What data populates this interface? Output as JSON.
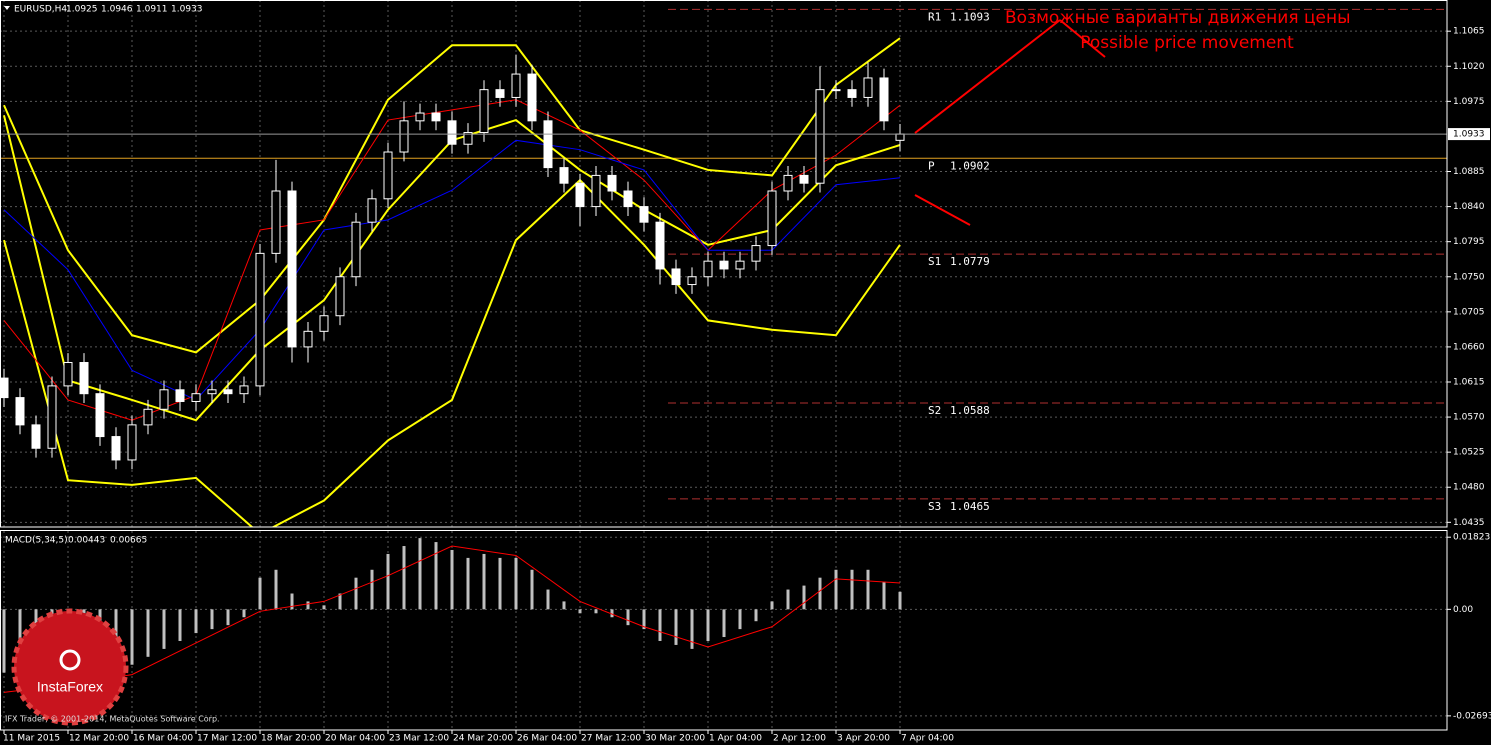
{
  "header": {
    "symbol": "EURUSD,H4"
  },
  "chart_data": [
    {
      "type": "candlestick",
      "categories": [
        "11 Mar 2015",
        null,
        null,
        null,
        "12 Mar 20:00",
        null,
        null,
        null,
        "16 Mar 04:00",
        null,
        null,
        null,
        "17 Mar 12:00",
        null,
        null,
        null,
        "18 Mar 20:00",
        null,
        null,
        null,
        "20 Mar 04:00",
        null,
        null,
        null,
        "23 Mar 12:00",
        null,
        null,
        null,
        "24 Mar 20:00",
        null,
        null,
        null,
        "26 Mar 04:00",
        null,
        null,
        null,
        "27 Mar 12:00",
        null,
        null,
        null,
        "30 Mar 20:00",
        null,
        null,
        null,
        "1 Apr 04:00",
        null,
        null,
        null,
        "2 Apr 12:00",
        null,
        null,
        null,
        "3 Apr 20:00",
        null,
        null,
        null,
        "7 Apr 04:00"
      ],
      "open": [
        1.062,
        1.0595,
        1.056,
        1.053,
        1.061,
        1.064,
        1.06,
        1.0545,
        1.0515,
        1.056,
        1.058,
        1.0605,
        1.059,
        1.06,
        1.0605,
        1.06,
        1.061,
        1.078,
        1.086,
        1.066,
        1.068,
        1.07,
        1.075,
        1.082,
        1.085,
        1.091,
        1.095,
        1.096,
        1.095,
        1.092,
        1.0935,
        1.099,
        1.098,
        1.101,
        1.095,
        1.089,
        1.087,
        1.084,
        1.088,
        1.086,
        1.084,
        1.082,
        1.076,
        1.074,
        1.075,
        1.077,
        1.076,
        1.077,
        1.079,
        1.086,
        1.088,
        1.087,
        1.099,
        1.099,
        1.098,
        1.1005,
        1.0925
      ],
      "high": [
        1.0632,
        1.0607,
        1.0572,
        1.0622,
        1.0652,
        1.0652,
        1.0612,
        1.0557,
        1.0572,
        1.0592,
        1.0617,
        1.0617,
        1.0612,
        1.0617,
        1.0617,
        1.0622,
        1.0792,
        1.09,
        1.0872,
        1.0692,
        1.0712,
        1.0762,
        1.0832,
        1.0862,
        1.0922,
        1.0975,
        1.0972,
        1.0972,
        1.0962,
        1.0947,
        1.1002,
        1.1002,
        1.1035,
        1.1022,
        1.0962,
        1.0902,
        1.0882,
        1.0892,
        1.0892,
        1.0872,
        1.0852,
        1.0832,
        1.0772,
        1.0762,
        1.0782,
        1.0782,
        1.0782,
        1.0802,
        1.0872,
        1.0892,
        1.0892,
        1.102,
        1.1002,
        1.1002,
        1.1025,
        1.1017,
        1.0946
      ],
      "low": [
        1.0583,
        1.0548,
        1.0518,
        1.0518,
        1.0598,
        1.0588,
        1.0533,
        1.0503,
        1.0503,
        1.0548,
        1.0568,
        1.0578,
        1.0578,
        1.0588,
        1.0588,
        1.0588,
        1.0598,
        1.0768,
        1.064,
        1.064,
        1.0668,
        1.0688,
        1.0738,
        1.0808,
        1.0838,
        1.0898,
        1.0938,
        1.0938,
        1.0908,
        1.0908,
        1.0923,
        1.0968,
        1.0968,
        1.0938,
        1.0878,
        1.0858,
        1.0815,
        1.0828,
        1.0848,
        1.0828,
        1.0808,
        1.074,
        1.0728,
        1.0728,
        1.0738,
        1.0748,
        1.0748,
        1.0758,
        1.0778,
        1.0848,
        1.0858,
        1.0858,
        1.0978,
        1.0968,
        1.0968,
        1.0938,
        1.0911
      ],
      "close": [
        1.0595,
        1.056,
        1.053,
        1.061,
        1.064,
        1.06,
        1.0545,
        1.0515,
        1.056,
        1.058,
        1.0605,
        1.059,
        1.06,
        1.0605,
        1.06,
        1.061,
        1.078,
        1.086,
        1.066,
        1.068,
        1.07,
        1.075,
        1.082,
        1.085,
        1.091,
        1.095,
        1.096,
        1.095,
        1.092,
        1.0935,
        1.099,
        1.098,
        1.101,
        1.095,
        1.089,
        1.087,
        1.084,
        1.088,
        1.086,
        1.084,
        1.082,
        1.076,
        1.074,
        1.075,
        1.077,
        1.076,
        1.077,
        1.079,
        1.086,
        1.088,
        1.087,
        1.099,
        1.099,
        1.098,
        1.1005,
        1.095,
        1.0933
      ],
      "up_color": "#000000",
      "down_color": "#ffffff",
      "candle_outline": "#ffffff",
      "series": [
        {
          "color": "#ffff00",
          "x": [
            0,
            4,
            8,
            12,
            16,
            20,
            24,
            28,
            32,
            36,
            40,
            44,
            48,
            52,
            56
          ],
          "values": [
            1.097,
            1.0784,
            1.0675,
            1.0653,
            1.072,
            1.0823,
            1.0977,
            1.1047,
            1.1047,
            1.0938,
            1.0913,
            1.0887,
            1.088,
            1.0996,
            1.1056
          ]
        },
        {
          "color": "#ffff00",
          "x": [
            0,
            4,
            8,
            12,
            16,
            20,
            24,
            28,
            32,
            36,
            40,
            44,
            48,
            52,
            56
          ],
          "values": [
            1.0957,
            1.0617,
            1.0592,
            1.0566,
            1.0656,
            1.072,
            1.0836,
            1.0925,
            1.0951,
            1.0887,
            1.0836,
            1.0791,
            1.081,
            1.0893,
            1.0919
          ]
        },
        {
          "color": "#ffff00",
          "x": [
            0,
            4,
            8,
            12,
            16,
            20,
            24,
            28,
            32,
            36,
            40,
            44,
            48,
            52,
            56
          ],
          "values": [
            1.0797,
            1.0489,
            1.0483,
            1.0492,
            1.042,
            1.0463,
            1.054,
            1.0592,
            1.0797,
            1.0874,
            1.0791,
            1.0694,
            1.0682,
            1.0675,
            1.0791
          ]
        },
        {
          "color": "#ff0000",
          "x": [
            0,
            4,
            8,
            12,
            16,
            20,
            24,
            28,
            32,
            36,
            40,
            44,
            48,
            52,
            56
          ],
          "values": [
            1.0694,
            1.0592,
            1.0566,
            1.0598,
            1.081,
            1.0823,
            1.0951,
            1.0964,
            1.0977,
            1.0938,
            1.0874,
            1.0784,
            1.0861,
            1.0906,
            1.097
          ]
        },
        {
          "color": "#0000ff",
          "x": [
            0,
            4,
            8,
            12,
            16,
            20,
            24,
            28,
            32,
            36,
            40,
            44,
            48,
            52,
            56
          ],
          "values": [
            1.0836,
            1.0759,
            1.063,
            1.0592,
            1.0682,
            1.081,
            1.0823,
            1.0861,
            1.0925,
            1.0913,
            1.0887,
            1.0784,
            1.0784,
            1.0868,
            1.0877
          ]
        }
      ],
      "levels": [
        {
          "name": "R1",
          "value": 1.1093,
          "color": "#b03030",
          "style": "dashed"
        },
        {
          "name": "P",
          "value": 1.0902,
          "color": "#e0a020",
          "style": "solid"
        },
        {
          "name": "S1",
          "value": 1.0779,
          "color": "#b03030",
          "style": "dashed"
        },
        {
          "name": "S2",
          "value": 1.0588,
          "color": "#b03030",
          "style": "dashed"
        },
        {
          "name": "S3",
          "value": 1.0465,
          "color": "#b03030",
          "style": "dashed"
        }
      ],
      "annotations": [
        "Возможные варианты движения цены",
        "Possible price movement"
      ],
      "ylim": [
        1.0429,
        1.1105
      ],
      "yticks": [
        1.0435,
        {
          "value": 1.048,
          "label": "1.0480"
        },
        1.0525,
        {
          "value": 1.057,
          "label": "1.0570"
        },
        1.0615,
        {
          "value": 1.066,
          "label": "1.0660"
        },
        1.0705,
        {
          "value": 1.075,
          "label": "1.0750"
        },
        1.0795,
        {
          "value": 1.084,
          "label": "1.0840"
        },
        1.0885,
        1.0975,
        {
          "value": 1.102,
          "label": "1.1020"
        },
        1.1065
      ],
      "grid": true
    },
    {
      "type": "macd",
      "title": "MACD(5,34,5)",
      "color": "#c0c0c0",
      "values": [
        -0.016,
        -0.018,
        -0.019,
        -0.018,
        -0.017,
        -0.018,
        -0.017,
        -0.016,
        -0.014,
        -0.012,
        -0.01,
        -0.008,
        -0.006,
        -0.005,
        -0.004,
        -0.002,
        0.008,
        0.01,
        0.004,
        0.002,
        0.001,
        0.004,
        0.008,
        0.01,
        0.014,
        0.016,
        0.018,
        0.017,
        0.015,
        0.013,
        0.014,
        0.013,
        0.013,
        0.01,
        0.005,
        0.002,
        -0.001,
        -0.001,
        -0.002,
        -0.004,
        -0.005,
        -0.008,
        -0.009,
        -0.01,
        -0.008,
        -0.007,
        -0.005,
        -0.003,
        0.002,
        0.005,
        0.006,
        0.008,
        0.01,
        0.01,
        0.01,
        0.007,
        0.00443
      ],
      "signal": {
        "color": "#ff0000",
        "x": [
          0,
          4,
          8,
          12,
          16,
          20,
          24,
          28,
          32,
          36,
          40,
          44,
          48,
          52,
          56
        ],
        "values": [
          -0.021,
          -0.019,
          -0.0165,
          -0.0085,
          -0.0005,
          0.002,
          0.0085,
          0.016,
          0.0136,
          0.002,
          -0.0044,
          -0.0095,
          -0.0044,
          0.0077,
          0.00665
        ]
      },
      "ylim": [
        -0.0305,
        0.0198
      ],
      "yticks": [
        0.01823,
        {
          "value": 0,
          "label": "0.00"
        },
        -0.02693
      ],
      "grid": true
    }
  ],
  "watermark": "IFX Trader, © 2001-2014, MetaQuotes Software Corp.",
  "logo": "InstaForex"
}
